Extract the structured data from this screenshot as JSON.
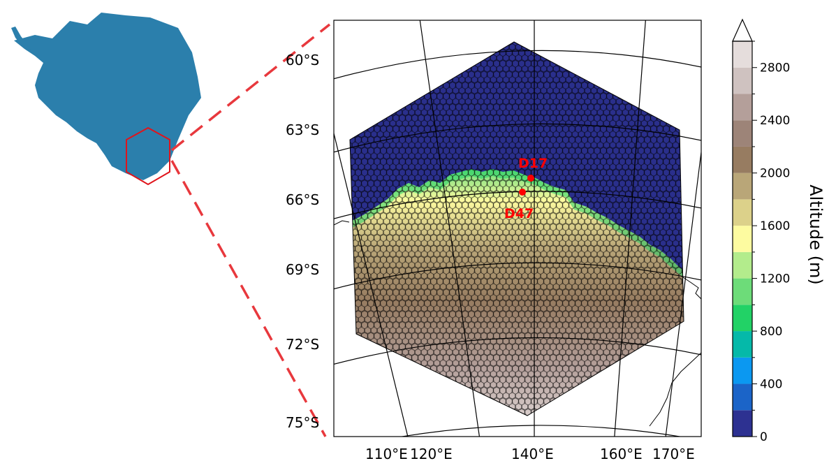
{
  "map": {
    "inset_shape_color": "#2b7fac",
    "callout_color": "#e8383d",
    "inset_hexagon_color": "#e0141b",
    "lat_labels": [
      "60°S",
      "63°S",
      "66°S",
      "69°S",
      "72°S",
      "75°S"
    ],
    "lon_labels": [
      "110°E",
      "120°E",
      "140°E",
      "160°E",
      "170°E"
    ],
    "stations": [
      {
        "name": "D17",
        "color": "#ff0000"
      },
      {
        "name": "D47",
        "color": "#ff0000"
      }
    ],
    "ocean_cell_color": "#2a2f8c",
    "cell_outline_color": "#000000"
  },
  "colorbar": {
    "title": "Altitude (m)",
    "tick_labels": [
      "0",
      "400",
      "800",
      "1200",
      "1600",
      "2000",
      "2400",
      "2800"
    ],
    "min": 0,
    "max": 3000,
    "step": 200,
    "extend": "max",
    "colors": [
      "#2d3191",
      "#1b64c8",
      "#0b98f1",
      "#05b9a9",
      "#22d266",
      "#6ddc79",
      "#b3ec8c",
      "#fdfba0",
      "#dcd18a",
      "#b9a678",
      "#977c61",
      "#9d8478",
      "#b49f9a",
      "#cfc2c0",
      "#e5dddc"
    ]
  }
}
